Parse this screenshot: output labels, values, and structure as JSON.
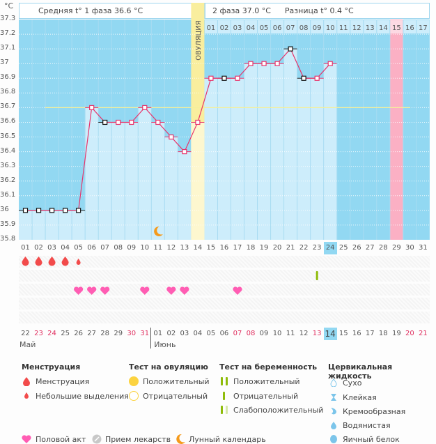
{
  "header": {
    "unit": "°C",
    "phase1_text": "Средняя t° 1 фаза 36.6 °C",
    "phase2_text": "2 фаза 37.0 °C",
    "difference_text": "Разница t° 0.4 °C",
    "ovulation_label": "ОВУЛЯЦИЯ"
  },
  "chart_data": {
    "type": "line",
    "title": "Basal body temperature chart",
    "ylabel": "°C",
    "ylim": [
      35.8,
      37.3
    ],
    "yticks": [
      "37.3",
      "37.2",
      "37.1",
      "37",
      "36.9",
      "36.8",
      "36.7",
      "36.6",
      "36.5",
      "36.4",
      "36.3",
      "36.2",
      "36.1",
      "36",
      "35.9",
      "35.8"
    ],
    "coverline": 36.7,
    "cycle_days": [
      "01",
      "02",
      "03",
      "04",
      "05",
      "06",
      "07",
      "08",
      "09",
      "10",
      "11",
      "12",
      "13",
      "14",
      "15",
      "16",
      "17",
      "18",
      "19",
      "20",
      "21",
      "22",
      "23",
      "24",
      "25",
      "26",
      "27",
      "28",
      "29",
      "30",
      "31"
    ],
    "values": [
      36.0,
      36.0,
      36.0,
      36.0,
      36.0,
      36.7,
      36.6,
      36.6,
      36.6,
      36.7,
      36.6,
      36.5,
      36.4,
      36.6,
      36.9,
      36.9,
      36.9,
      37.0,
      37.0,
      37.0,
      37.1,
      36.9,
      36.9,
      37.0
    ],
    "black_markers_days": [
      1,
      2,
      3,
      4,
      5,
      7,
      16,
      21,
      22
    ],
    "ovulation_day": 14,
    "current_day": 24,
    "next_period_day": 29,
    "luteal_days_header": [
      "01",
      "02",
      "03",
      "04",
      "05",
      "06",
      "07",
      "08",
      "09",
      "10",
      "11",
      "12",
      "13",
      "14",
      "15",
      "16",
      "17"
    ],
    "luteal_start_day": 15,
    "luteal_highlight": "15",
    "dates": [
      "22",
      "23",
      "24",
      "25",
      "26",
      "27",
      "28",
      "29",
      "30",
      "31",
      "01",
      "02",
      "03",
      "04",
      "05",
      "06",
      "07",
      "08",
      "09",
      "10",
      "11",
      "12",
      "13",
      "14",
      "15",
      "16",
      "17",
      "18",
      "19",
      "20",
      "21"
    ],
    "red_dates_index": [
      2,
      3,
      9,
      10,
      17,
      18,
      23,
      30,
      31
    ],
    "today_date_day": 24,
    "months": [
      {
        "label": "Май",
        "start_day": 1
      },
      {
        "label": "Июнь",
        "start_day": 11
      }
    ],
    "menstruation_days": [
      1,
      2,
      3,
      4
    ],
    "spotting_days": [
      5
    ],
    "intercourse_days": [
      5,
      6,
      7,
      10,
      12,
      13,
      17
    ],
    "pregnancy_test_negative_days": [
      23
    ],
    "moon_day": 11
  },
  "legend": {
    "menstruation": {
      "title": "Менструация",
      "items": [
        "Менструация",
        "Небольшие выделения"
      ]
    },
    "ovulation_test": {
      "title": "Тест на овуляцию",
      "items": [
        "Положительный",
        "Отрицательный"
      ]
    },
    "pregnancy_test": {
      "title": "Тест на беременность",
      "items": [
        "Положительный",
        "Отрицательный",
        "Слабоположительный"
      ]
    },
    "cervical_fluid": {
      "title": "Цервикальная жидкость",
      "items": [
        "Сухо",
        "Клейкая",
        "Кремообразная",
        "Водянистая",
        "Яичный белок"
      ]
    },
    "other": [
      "Половой акт",
      "Прием лекарств",
      "Лунный календарь"
    ]
  },
  "colors": {
    "chart_bg": "#92d8f2",
    "bar_fill": "#cdedfb",
    "line": "#e8336a",
    "ovulation": "#f9ee9e",
    "period_forecast": "#fbb0c4",
    "coverline": "#f4ef9a",
    "heart": "#ff5db3",
    "drop": "#f24b4b",
    "test_green": "#8fbc0a",
    "moon": "#f59a1b"
  }
}
